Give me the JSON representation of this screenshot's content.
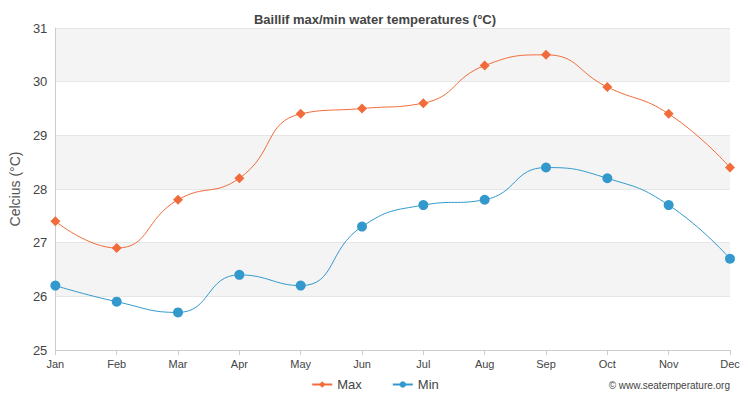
{
  "chart_data": {
    "type": "line",
    "title": "Baillif max/min water temperatures (°C)",
    "y_label": "Celcius (°C)",
    "annotation": "© www.seatemperature.org",
    "categories": [
      "Jan",
      "Feb",
      "Mar",
      "Apr",
      "May",
      "Jun",
      "Jul",
      "Aug",
      "Sep",
      "Oct",
      "Nov",
      "Dec"
    ],
    "series": [
      {
        "name": "Max",
        "color": "#f26b3a",
        "marker": "diamond",
        "line_style": "solid",
        "values": [
          27.4,
          26.9,
          27.8,
          28.2,
          29.4,
          29.5,
          29.6,
          30.3,
          30.5,
          29.9,
          29.4,
          28.4
        ]
      },
      {
        "name": "Min",
        "color": "#3399cc",
        "marker": "circle",
        "line_style": "solid",
        "values": [
          26.2,
          25.9,
          25.7,
          26.4,
          26.2,
          27.3,
          27.7,
          27.8,
          28.4,
          28.2,
          27.7,
          26.7
        ]
      }
    ],
    "ylim": [
      25,
      31
    ],
    "yticks": [
      25,
      26,
      27,
      28,
      29,
      30,
      31
    ],
    "grid": true,
    "legend": "bottom"
  }
}
